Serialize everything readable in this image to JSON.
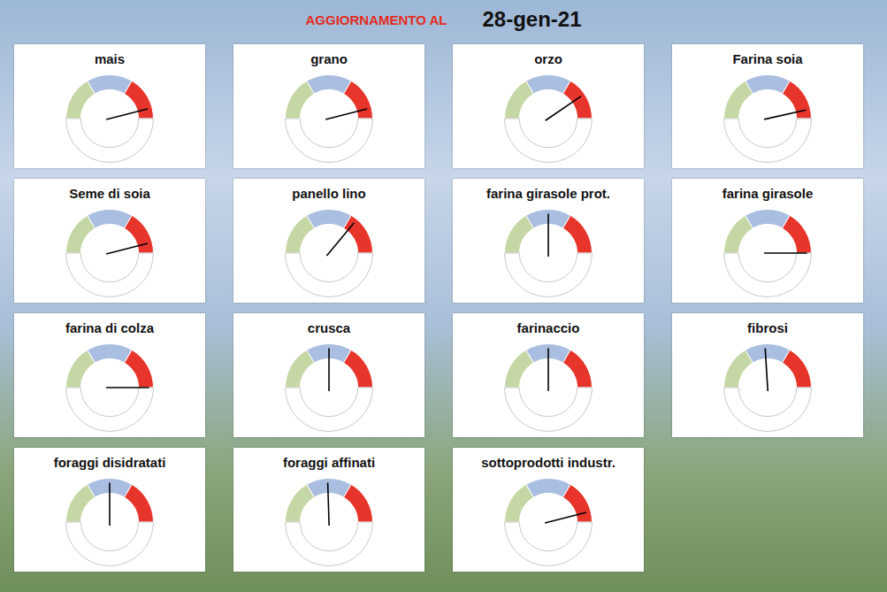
{
  "header": {
    "label": "AGGIORNAMENTO AL",
    "date": "28-gen-21"
  },
  "chart_data": [
    {
      "type": "gauge",
      "title": "mais",
      "values": [
        33,
        34,
        33
      ],
      "colors": [
        "#c5d7a4",
        "#a9bee0",
        "#e8352b"
      ],
      "ylim": [
        0,
        100
      ],
      "needle": 92,
      "tick_labels": false
    },
    {
      "type": "gauge",
      "title": "grano",
      "values": [
        33,
        34,
        33
      ],
      "colors": [
        "#c5d7a4",
        "#a9bee0",
        "#e8352b"
      ],
      "ylim": [
        0,
        100
      ],
      "needle": 92,
      "tick_labels": false
    },
    {
      "type": "gauge",
      "title": "orzo",
      "values": [
        33,
        34,
        33
      ],
      "colors": [
        "#c5d7a4",
        "#a9bee0",
        "#e8352b"
      ],
      "ylim": [
        0,
        100
      ],
      "needle": 81,
      "tick_labels": false
    },
    {
      "type": "gauge",
      "title": "Farina soia",
      "values": [
        33,
        34,
        33
      ],
      "colors": [
        "#c5d7a4",
        "#a9bee0",
        "#e8352b"
      ],
      "ylim": [
        0,
        100
      ],
      "needle": 93,
      "tick_labels": false
    },
    {
      "type": "gauge",
      "title": "Seme di soia",
      "values": [
        33,
        34,
        33
      ],
      "colors": [
        "#c5d7a4",
        "#a9bee0",
        "#e8352b"
      ],
      "ylim": [
        0,
        100
      ],
      "needle": 92,
      "tick_labels": false
    },
    {
      "type": "gauge",
      "title": "panello lino",
      "values": [
        33,
        34,
        33
      ],
      "colors": [
        "#c5d7a4",
        "#a9bee0",
        "#e8352b"
      ],
      "ylim": [
        0,
        100
      ],
      "needle": 72,
      "tick_labels": false
    },
    {
      "type": "gauge",
      "title": "farina girasole prot.",
      "values": [
        33,
        34,
        33
      ],
      "colors": [
        "#c5d7a4",
        "#a9bee0",
        "#e8352b"
      ],
      "ylim": [
        0,
        100
      ],
      "needle": 50,
      "tick_labels": false
    },
    {
      "type": "gauge",
      "title": "farina girasole",
      "values": [
        33,
        34,
        33
      ],
      "colors": [
        "#c5d7a4",
        "#a9bee0",
        "#e8352b"
      ],
      "ylim": [
        0,
        100
      ],
      "needle": 100,
      "tick_labels": false
    },
    {
      "type": "gauge",
      "title": "farina di colza",
      "values": [
        33,
        34,
        33
      ],
      "colors": [
        "#c5d7a4",
        "#a9bee0",
        "#e8352b"
      ],
      "ylim": [
        0,
        100
      ],
      "needle": 100,
      "tick_labels": false
    },
    {
      "type": "gauge",
      "title": "crusca",
      "values": [
        33,
        34,
        33
      ],
      "colors": [
        "#c5d7a4",
        "#a9bee0",
        "#e8352b"
      ],
      "ylim": [
        0,
        100
      ],
      "needle": 50,
      "tick_labels": false
    },
    {
      "type": "gauge",
      "title": "farinaccio",
      "values": [
        33,
        34,
        33
      ],
      "colors": [
        "#c5d7a4",
        "#a9bee0",
        "#e8352b"
      ],
      "ylim": [
        0,
        100
      ],
      "needle": 50,
      "tick_labels": false
    },
    {
      "type": "gauge",
      "title": "fibrosi",
      "values": [
        33,
        34,
        33
      ],
      "colors": [
        "#c5d7a4",
        "#a9bee0",
        "#e8352b"
      ],
      "ylim": [
        0,
        100
      ],
      "needle": 48,
      "tick_labels": false
    },
    {
      "type": "gauge",
      "title": "foraggi disidratati",
      "values": [
        33,
        34,
        33
      ],
      "colors": [
        "#c5d7a4",
        "#a9bee0",
        "#e8352b"
      ],
      "ylim": [
        0,
        100
      ],
      "needle": 50,
      "tick_labels": false
    },
    {
      "type": "gauge",
      "title": "foraggi affinati",
      "values": [
        33,
        34,
        33
      ],
      "colors": [
        "#c5d7a4",
        "#a9bee0",
        "#e8352b"
      ],
      "ylim": [
        0,
        100
      ],
      "needle": 49,
      "tick_labels": false
    },
    {
      "type": "gauge",
      "title": "sottoprodotti industr.",
      "values": [
        33,
        34,
        33
      ],
      "colors": [
        "#c5d7a4",
        "#a9bee0",
        "#e8352b"
      ],
      "ylim": [
        0,
        100
      ],
      "needle": 92,
      "tick_labels": false
    }
  ]
}
